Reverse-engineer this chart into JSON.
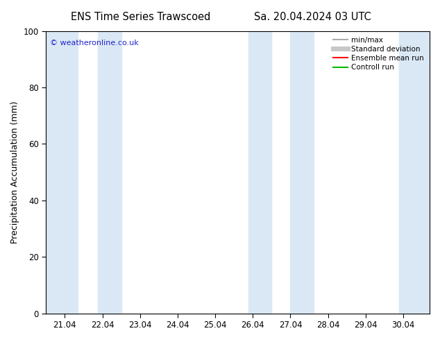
{
  "title_left": "ENS Time Series Trawscoed",
  "title_right": "Sa. 20.04.2024 03 UTC",
  "ylabel": "Precipitation Accumulation (mm)",
  "watermark": "© weatheronline.co.uk",
  "ylim": [
    0,
    100
  ],
  "yticks": [
    0,
    20,
    40,
    60,
    80,
    100
  ],
  "xtick_labels": [
    "21.04",
    "22.04",
    "23.04",
    "24.04",
    "25.04",
    "26.04",
    "27.04",
    "28.04",
    "29.04",
    "30.04"
  ],
  "xtick_positions": [
    0,
    1,
    2,
    3,
    4,
    5,
    6,
    7,
    8,
    9
  ],
  "xlim": [
    -0.5,
    9.7
  ],
  "blue_bands": [
    [
      -0.5,
      0.35
    ],
    [
      0.88,
      1.5
    ],
    [
      4.88,
      5.5
    ],
    [
      6.0,
      6.62
    ],
    [
      8.88,
      9.7
    ]
  ],
  "band_color": "#dae8f5",
  "background_color": "#ffffff",
  "legend_items": [
    {
      "label": "min/max",
      "color": "#aaaaaa",
      "lw": 1.5
    },
    {
      "label": "Standard deviation",
      "color": "#c8c8c8",
      "lw": 5
    },
    {
      "label": "Ensemble mean run",
      "color": "#ff0000",
      "lw": 1.5
    },
    {
      "label": "Controll run",
      "color": "#00bb00",
      "lw": 1.5
    }
  ],
  "watermark_color": "#2222cc",
  "title_fontsize": 10.5,
  "axis_fontsize": 9,
  "tick_fontsize": 8.5
}
